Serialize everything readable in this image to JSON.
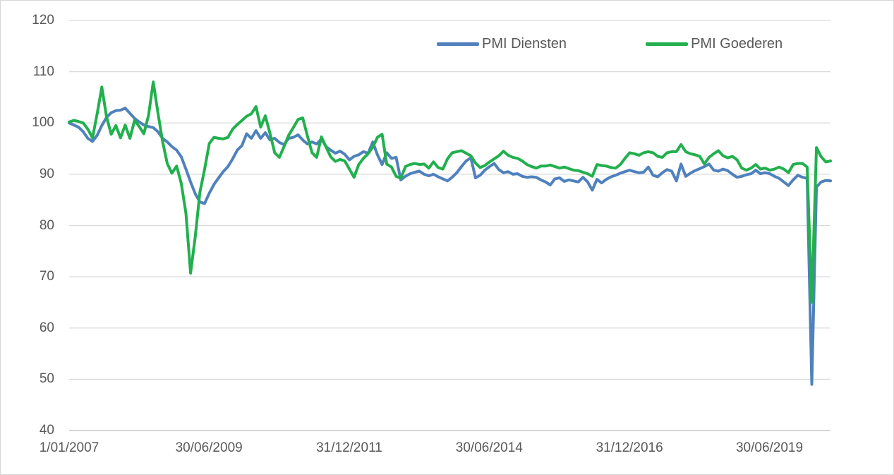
{
  "chart_data": {
    "type": "line",
    "title": "",
    "xlabel": "",
    "ylabel": "",
    "x_interval": "monthly",
    "x_start": "2007-01",
    "x_end": "2020-08",
    "x_tick_labels": [
      "1/01/2007",
      "30/06/2009",
      "31/12/2011",
      "30/06/2014",
      "31/12/2016",
      "30/06/2019"
    ],
    "y_ticks": [
      40,
      50,
      60,
      70,
      80,
      90,
      100,
      110,
      120
    ],
    "ylim": [
      40,
      120
    ],
    "grid": "horizontal",
    "legend_position": "top-center",
    "gridline_color": "#d9d9d9",
    "axis_line_color": "#c8c8c8",
    "tick_label_color": "#595959",
    "series": [
      {
        "name": "PMI Diensten",
        "color": "#4f81bd",
        "values": [
          100.0,
          99.6,
          99.2,
          98.3,
          97.0,
          96.4,
          97.6,
          99.5,
          101.1,
          102.0,
          102.4,
          102.5,
          102.9,
          101.9,
          100.9,
          100.2,
          99.6,
          99.3,
          99.1,
          98.3,
          97.0,
          96.3,
          95.4,
          94.7,
          93.4,
          91.0,
          88.5,
          86.2,
          84.6,
          84.3,
          86.3,
          88.0,
          89.3,
          90.5,
          91.5,
          93.0,
          94.7,
          95.6,
          97.9,
          97.0,
          98.5,
          97.0,
          98.1,
          96.7,
          97.0,
          96.2,
          95.8,
          97.0,
          97.2,
          97.7,
          96.7,
          95.9,
          96.3,
          95.9,
          96.9,
          95.4,
          94.7,
          94.1,
          94.5,
          93.9,
          92.8,
          93.5,
          93.8,
          94.4,
          94.1,
          96.3,
          93.8,
          91.9,
          94.2,
          93.1,
          93.3,
          88.9,
          89.6,
          90.1,
          90.4,
          90.6,
          90.0,
          89.7,
          90.0,
          89.5,
          89.1,
          88.7,
          89.4,
          90.3,
          91.5,
          92.6,
          93.2,
          89.3,
          89.8,
          90.8,
          91.5,
          92.1,
          90.9,
          90.3,
          90.5,
          90.0,
          90.1,
          89.6,
          89.4,
          89.5,
          89.4,
          88.9,
          88.5,
          87.9,
          89.1,
          89.3,
          88.6,
          88.9,
          88.7,
          88.5,
          89.4,
          88.5,
          86.9,
          89.0,
          88.3,
          89.0,
          89.5,
          89.8,
          90.2,
          90.5,
          90.8,
          90.5,
          90.3,
          90.4,
          91.4,
          89.8,
          89.5,
          90.3,
          90.9,
          90.6,
          88.7,
          92.0,
          89.6,
          90.2,
          90.7,
          91.1,
          91.5,
          92.0,
          90.8,
          90.6,
          91.0,
          90.7,
          90.0,
          89.4,
          89.6,
          89.9,
          90.1,
          90.8,
          90.1,
          90.3,
          90.1,
          89.6,
          89.2,
          88.5,
          87.8,
          88.9,
          89.8,
          89.4,
          89.2,
          49.0,
          87.5,
          88.5,
          88.8,
          88.7
        ]
      },
      {
        "name": "PMI Goederen",
        "color": "#21b04d",
        "values": [
          100.2,
          100.5,
          100.3,
          100.0,
          98.8,
          97.1,
          101.8,
          107.0,
          101.2,
          97.8,
          99.5,
          97.1,
          99.6,
          97.0,
          100.5,
          99.3,
          97.9,
          101.5,
          108.0,
          102.0,
          96.4,
          92.1,
          90.2,
          91.6,
          88.2,
          82.4,
          70.7,
          77.8,
          86.5,
          91.0,
          96.0,
          97.2,
          97.0,
          96.9,
          97.2,
          98.8,
          99.7,
          100.5,
          101.3,
          101.8,
          103.2,
          99.2,
          101.4,
          98.0,
          94.2,
          93.3,
          95.4,
          97.6,
          99.1,
          100.7,
          101.0,
          97.5,
          94.2,
          93.3,
          97.3,
          95.3,
          93.4,
          92.5,
          92.9,
          92.6,
          91.0,
          89.4,
          91.9,
          93.1,
          94.0,
          95.3,
          97.2,
          97.8,
          92.0,
          91.4,
          89.6,
          89.2,
          91.5,
          91.9,
          92.1,
          91.9,
          92.0,
          91.2,
          92.4,
          91.3,
          91.0,
          93.0,
          94.2,
          94.4,
          94.6,
          94.1,
          93.6,
          92.2,
          91.3,
          91.7,
          92.4,
          93.0,
          93.6,
          94.5,
          93.7,
          93.3,
          93.1,
          92.6,
          91.9,
          91.5,
          91.2,
          91.6,
          91.6,
          91.8,
          91.5,
          91.2,
          91.4,
          91.1,
          90.8,
          90.7,
          90.4,
          90.1,
          89.6,
          91.9,
          91.7,
          91.6,
          91.3,
          91.2,
          91.9,
          93.1,
          94.2,
          94.0,
          93.7,
          94.2,
          94.4,
          94.2,
          93.5,
          93.3,
          94.2,
          94.4,
          94.4,
          95.8,
          94.4,
          94.0,
          93.8,
          93.5,
          92.0,
          93.3,
          94.0,
          94.6,
          93.6,
          93.2,
          93.5,
          92.8,
          91.2,
          90.8,
          91.2,
          91.9,
          91.0,
          91.2,
          90.8,
          91.0,
          91.4,
          91.0,
          90.3,
          91.9,
          92.1,
          92.1,
          91.4,
          65.0,
          95.2,
          93.4,
          92.4,
          92.6
        ]
      }
    ]
  }
}
